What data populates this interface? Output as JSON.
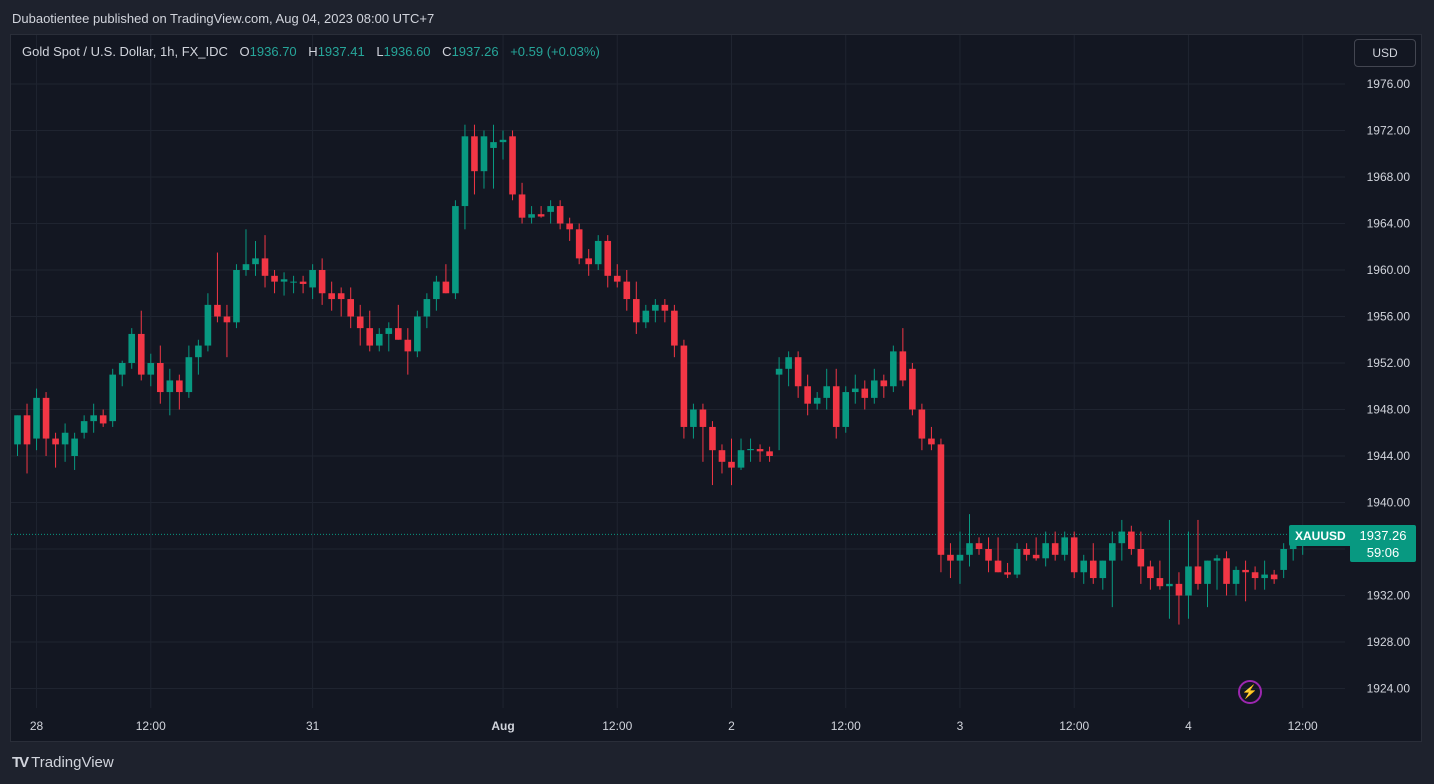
{
  "header": {
    "published": "Dubaotientee published on TradingView.com, Aug 04, 2023 08:00 UTC+7"
  },
  "legend": {
    "symbol": "Gold Spot / U.S. Dollar, 1h, FX_IDC",
    "o_label": "O",
    "o_value": "1936.70",
    "h_label": "H",
    "h_value": "1937.41",
    "l_label": "L",
    "l_value": "1936.60",
    "c_label": "C",
    "c_value": "1937.26",
    "change": "+0.59 (+0.03%)"
  },
  "currency_button": "USD",
  "price_tag": {
    "symbol": "XAUUSD",
    "price": "1937.26",
    "countdown": "59:06"
  },
  "footer": {
    "logo_mark": "TV",
    "brand": "TradingView"
  },
  "colors": {
    "up": "#089981",
    "down": "#f23645",
    "background": "#131722",
    "grid": "#1f2430",
    "text": "#d1d4dc"
  },
  "icons": {
    "alert": "lightning-icon",
    "brand": "tradingview-logo-icon"
  },
  "chart_data": {
    "type": "candlestick",
    "symbol": "XAUUSD",
    "interval": "1h",
    "ylim": [
      1922,
      1980
    ],
    "y_ticks": [
      "1976.00",
      "1972.00",
      "1968.00",
      "1964.00",
      "1960.00",
      "1956.00",
      "1952.00",
      "1948.00",
      "1944.00",
      "1940.00",
      "1936.00",
      "1932.00",
      "1928.00",
      "1924.00"
    ],
    "y_tick_values": [
      1976,
      1972,
      1968,
      1964,
      1960,
      1956,
      1952,
      1948,
      1944,
      1940,
      1936,
      1932,
      1928,
      1924
    ],
    "x_ticks": [
      {
        "label": "28",
        "bar": 2
      },
      {
        "label": "12:00",
        "bar": 14
      },
      {
        "label": "31",
        "bar": 31
      },
      {
        "label": "Aug",
        "bar": 51
      },
      {
        "label": "12:00",
        "bar": 63
      },
      {
        "label": "2",
        "bar": 75
      },
      {
        "label": "12:00",
        "bar": 87
      },
      {
        "label": "3",
        "bar": 99
      },
      {
        "label": "12:00",
        "bar": 111
      },
      {
        "label": "4",
        "bar": 123
      },
      {
        "label": "12:00",
        "bar": 135
      }
    ],
    "last_price": 1937.26,
    "candles": [
      [
        1945.0,
        1947.5,
        1944.0,
        1947.5
      ],
      [
        1947.5,
        1948.5,
        1942.5,
        1945.0
      ],
      [
        1945.5,
        1949.8,
        1944.5,
        1949.0
      ],
      [
        1949.0,
        1949.5,
        1944.0,
        1945.5
      ],
      [
        1945.5,
        1946.0,
        1943.0,
        1945.0
      ],
      [
        1945.0,
        1946.8,
        1943.5,
        1946.0
      ],
      [
        1944.0,
        1946.0,
        1942.8,
        1945.5
      ],
      [
        1946.0,
        1947.5,
        1945.5,
        1947.0
      ],
      [
        1947.0,
        1948.5,
        1946.0,
        1947.5
      ],
      [
        1947.5,
        1948.0,
        1946.5,
        1946.8
      ],
      [
        1947.0,
        1951.5,
        1946.5,
        1951.0
      ],
      [
        1951.0,
        1952.2,
        1950.0,
        1952.0
      ],
      [
        1952.0,
        1955.0,
        1951.5,
        1954.5
      ],
      [
        1954.5,
        1956.5,
        1950.5,
        1951.0
      ],
      [
        1951.0,
        1952.8,
        1950.0,
        1952.0
      ],
      [
        1952.0,
        1953.5,
        1948.5,
        1949.5
      ],
      [
        1949.5,
        1951.5,
        1947.5,
        1950.5
      ],
      [
        1950.5,
        1951.0,
        1948.0,
        1949.5
      ],
      [
        1949.5,
        1953.5,
        1949.0,
        1952.5
      ],
      [
        1952.5,
        1954.0,
        1951.0,
        1953.5
      ],
      [
        1953.5,
        1958.0,
        1953.0,
        1957.0
      ],
      [
        1957.0,
        1961.5,
        1955.5,
        1956.0
      ],
      [
        1956.0,
        1957.0,
        1952.5,
        1955.5
      ],
      [
        1955.5,
        1960.5,
        1955.0,
        1960.0
      ],
      [
        1960.0,
        1963.5,
        1959.5,
        1960.5
      ],
      [
        1960.5,
        1962.5,
        1959.5,
        1961.0
      ],
      [
        1961.0,
        1963.0,
        1958.5,
        1959.5
      ],
      [
        1959.5,
        1960.0,
        1958.0,
        1959.0
      ],
      [
        1959.0,
        1959.8,
        1957.8,
        1959.2
      ],
      [
        1959.0,
        1959.5,
        1958.0,
        1959.0
      ],
      [
        1959.0,
        1959.5,
        1958.0,
        1958.8
      ],
      [
        1958.5,
        1960.5,
        1957.5,
        1960.0
      ],
      [
        1960.0,
        1961.0,
        1957.0,
        1958.0
      ],
      [
        1958.0,
        1959.0,
        1956.5,
        1957.5
      ],
      [
        1958.0,
        1958.5,
        1956.0,
        1957.5
      ],
      [
        1957.5,
        1958.5,
        1955.0,
        1956.0
      ],
      [
        1956.0,
        1957.0,
        1953.5,
        1955.0
      ],
      [
        1955.0,
        1956.5,
        1953.0,
        1953.5
      ],
      [
        1953.5,
        1955.0,
        1953.0,
        1954.5
      ],
      [
        1954.5,
        1955.5,
        1953.0,
        1955.0
      ],
      [
        1955.0,
        1957.0,
        1954.0,
        1954.0
      ],
      [
        1954.0,
        1955.0,
        1951.0,
        1953.0
      ],
      [
        1953.0,
        1956.5,
        1952.5,
        1956.0
      ],
      [
        1956.0,
        1958.0,
        1955.0,
        1957.5
      ],
      [
        1957.5,
        1959.5,
        1956.5,
        1959.0
      ],
      [
        1959.0,
        1960.5,
        1958.0,
        1958.0
      ],
      [
        1958.0,
        1966.0,
        1957.5,
        1965.5
      ],
      [
        1965.5,
        1972.5,
        1963.5,
        1971.5
      ],
      [
        1971.5,
        1972.5,
        1966.5,
        1968.5
      ],
      [
        1968.5,
        1972.0,
        1967.0,
        1971.5
      ],
      [
        1970.5,
        1972.5,
        1967.0,
        1971.0
      ],
      [
        1971.0,
        1972.0,
        1969.5,
        1971.2
      ],
      [
        1971.5,
        1972.0,
        1966.0,
        1966.5
      ],
      [
        1966.5,
        1967.5,
        1964.0,
        1964.5
      ],
      [
        1964.5,
        1965.5,
        1964.0,
        1964.8
      ],
      [
        1964.8,
        1965.5,
        1964.5,
        1964.6
      ],
      [
        1965.0,
        1966.0,
        1964.0,
        1965.5
      ],
      [
        1965.5,
        1966.0,
        1963.5,
        1964.0
      ],
      [
        1964.0,
        1964.5,
        1962.5,
        1963.5
      ],
      [
        1963.5,
        1964.0,
        1960.5,
        1961.0
      ],
      [
        1961.0,
        1961.8,
        1959.5,
        1960.5
      ],
      [
        1960.5,
        1963.0,
        1960.0,
        1962.5
      ],
      [
        1962.5,
        1963.0,
        1958.5,
        1959.5
      ],
      [
        1959.5,
        1960.5,
        1958.5,
        1959.0
      ],
      [
        1959.0,
        1960.0,
        1956.5,
        1957.5
      ],
      [
        1957.5,
        1959.0,
        1954.5,
        1955.5
      ],
      [
        1955.5,
        1957.0,
        1955.0,
        1956.5
      ],
      [
        1956.5,
        1957.5,
        1955.5,
        1957.0
      ],
      [
        1957.0,
        1957.5,
        1955.5,
        1956.5
      ],
      [
        1956.5,
        1957.0,
        1952.5,
        1953.5
      ],
      [
        1953.5,
        1954.0,
        1945.5,
        1946.5
      ],
      [
        1946.5,
        1948.5,
        1945.5,
        1948.0
      ],
      [
        1948.0,
        1948.5,
        1943.5,
        1946.5
      ],
      [
        1946.5,
        1947.0,
        1941.5,
        1944.5
      ],
      [
        1944.5,
        1945.0,
        1942.5,
        1943.5
      ],
      [
        1943.5,
        1945.5,
        1941.5,
        1943.0
      ],
      [
        1943.0,
        1945.5,
        1942.8,
        1944.5
      ],
      [
        1944.5,
        1945.5,
        1943.5,
        1944.6
      ],
      [
        1944.6,
        1945.0,
        1943.5,
        1944.4
      ],
      [
        1944.4,
        1944.8,
        1943.5,
        1944.0
      ],
      [
        1951.0,
        1952.5,
        1944.5,
        1951.5
      ],
      [
        1951.5,
        1953.0,
        1950.0,
        1952.5
      ],
      [
        1952.5,
        1953.0,
        1949.0,
        1950.0
      ],
      [
        1950.0,
        1951.0,
        1947.5,
        1948.5
      ],
      [
        1948.5,
        1949.5,
        1948.0,
        1949.0
      ],
      [
        1949.0,
        1951.5,
        1948.0,
        1950.0
      ],
      [
        1950.0,
        1951.5,
        1945.5,
        1946.5
      ],
      [
        1946.5,
        1950.0,
        1946.0,
        1949.5
      ],
      [
        1949.5,
        1951.0,
        1948.5,
        1949.8
      ],
      [
        1949.8,
        1950.5,
        1948.0,
        1949.0
      ],
      [
        1949.0,
        1951.5,
        1948.5,
        1950.5
      ],
      [
        1950.5,
        1951.0,
        1949.0,
        1950.0
      ],
      [
        1950.0,
        1953.5,
        1949.5,
        1953.0
      ],
      [
        1953.0,
        1955.0,
        1950.0,
        1950.5
      ],
      [
        1951.5,
        1952.0,
        1947.5,
        1948.0
      ],
      [
        1948.0,
        1948.5,
        1944.5,
        1945.5
      ],
      [
        1945.5,
        1946.5,
        1944.5,
        1945.0
      ],
      [
        1945.0,
        1945.5,
        1934.0,
        1935.5
      ],
      [
        1935.5,
        1936.5,
        1933.5,
        1935.0
      ],
      [
        1935.0,
        1937.5,
        1933.0,
        1935.5
      ],
      [
        1935.5,
        1939.0,
        1934.5,
        1936.5
      ],
      [
        1936.5,
        1937.0,
        1935.5,
        1936.0
      ],
      [
        1936.0,
        1937.0,
        1934.0,
        1935.0
      ],
      [
        1935.0,
        1937.0,
        1934.0,
        1934.0
      ],
      [
        1934.0,
        1934.8,
        1933.5,
        1933.8
      ],
      [
        1933.8,
        1936.5,
        1933.5,
        1936.0
      ],
      [
        1936.0,
        1936.5,
        1935.0,
        1935.5
      ],
      [
        1935.5,
        1937.0,
        1935.0,
        1935.2
      ],
      [
        1935.2,
        1937.5,
        1934.5,
        1936.5
      ],
      [
        1936.5,
        1937.5,
        1935.0,
        1935.5
      ],
      [
        1935.5,
        1937.5,
        1935.0,
        1937.0
      ],
      [
        1937.0,
        1937.5,
        1933.5,
        1934.0
      ],
      [
        1934.0,
        1935.5,
        1933.0,
        1935.0
      ],
      [
        1935.0,
        1936.5,
        1933.0,
        1933.5
      ],
      [
        1933.5,
        1935.0,
        1932.5,
        1935.0
      ],
      [
        1935.0,
        1937.5,
        1931.0,
        1936.5
      ],
      [
        1936.5,
        1938.5,
        1935.0,
        1937.5
      ],
      [
        1937.5,
        1938.0,
        1935.5,
        1936.0
      ],
      [
        1936.0,
        1937.5,
        1933.0,
        1934.5
      ],
      [
        1934.5,
        1935.0,
        1932.5,
        1933.5
      ],
      [
        1933.5,
        1935.0,
        1932.5,
        1932.8
      ],
      [
        1932.8,
        1938.5,
        1930.0,
        1933.0
      ],
      [
        1933.0,
        1934.0,
        1929.5,
        1932.0
      ],
      [
        1932.0,
        1937.5,
        1930.0,
        1934.5
      ],
      [
        1934.5,
        1938.5,
        1932.5,
        1933.0
      ],
      [
        1933.0,
        1935.0,
        1931.0,
        1935.0
      ],
      [
        1935.0,
        1935.5,
        1932.5,
        1935.2
      ],
      [
        1935.2,
        1935.8,
        1932.0,
        1933.0
      ],
      [
        1933.0,
        1934.5,
        1932.0,
        1934.2
      ],
      [
        1934.2,
        1935.0,
        1931.5,
        1934.0
      ],
      [
        1934.0,
        1934.5,
        1932.5,
        1933.5
      ],
      [
        1933.5,
        1935.0,
        1932.5,
        1933.8
      ],
      [
        1933.8,
        1934.2,
        1933.0,
        1933.4
      ],
      [
        1934.2,
        1936.5,
        1933.5,
        1936.0
      ],
      [
        1936.0,
        1937.0,
        1935.0,
        1936.5
      ],
      [
        1936.5,
        1937.5,
        1935.5,
        1936.7
      ],
      [
        1936.7,
        1937.41,
        1936.6,
        1937.26
      ]
    ]
  }
}
